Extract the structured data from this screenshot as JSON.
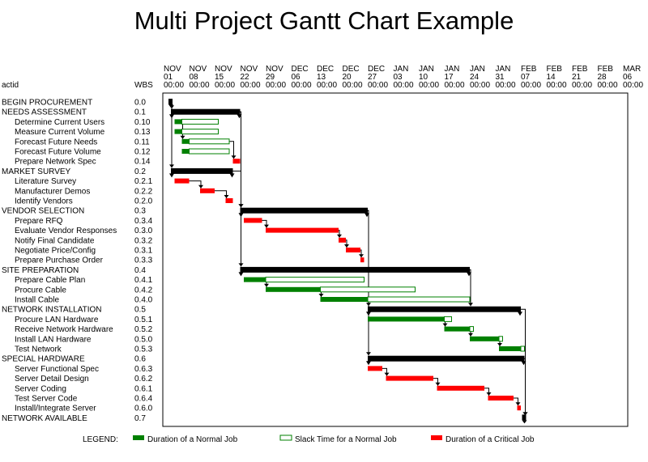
{
  "chart_data": {
    "type": "gantt",
    "title": "Multi Project Gantt Chart Example",
    "columns": {
      "actid": "actid",
      "wbs": "WBS"
    },
    "date_ticks": [
      {
        "mon": "NOV",
        "day": "01",
        "time": "00:00",
        "date": "2003-11-01"
      },
      {
        "mon": "NOV",
        "day": "08",
        "time": "00:00",
        "date": "2003-11-08"
      },
      {
        "mon": "NOV",
        "day": "15",
        "time": "00:00",
        "date": "2003-11-15"
      },
      {
        "mon": "NOV",
        "day": "22",
        "time": "00:00",
        "date": "2003-11-22"
      },
      {
        "mon": "NOV",
        "day": "29",
        "time": "00:00",
        "date": "2003-11-29"
      },
      {
        "mon": "DEC",
        "day": "06",
        "time": "00:00",
        "date": "2003-12-06"
      },
      {
        "mon": "DEC",
        "day": "13",
        "time": "00:00",
        "date": "2003-12-13"
      },
      {
        "mon": "DEC",
        "day": "20",
        "time": "00:00",
        "date": "2003-12-20"
      },
      {
        "mon": "DEC",
        "day": "27",
        "time": "00:00",
        "date": "2003-12-27"
      },
      {
        "mon": "JAN",
        "day": "03",
        "time": "00:00",
        "date": "2004-01-03"
      },
      {
        "mon": "JAN",
        "day": "10",
        "time": "00:00",
        "date": "2004-01-10"
      },
      {
        "mon": "JAN",
        "day": "17",
        "time": "00:00",
        "date": "2004-01-17"
      },
      {
        "mon": "JAN",
        "day": "24",
        "time": "00:00",
        "date": "2004-01-24"
      },
      {
        "mon": "JAN",
        "day": "31",
        "time": "00:00",
        "date": "2004-01-31"
      },
      {
        "mon": "FEB",
        "day": "07",
        "time": "00:00",
        "date": "2004-02-07"
      },
      {
        "mon": "FEB",
        "day": "14",
        "time": "00:00",
        "date": "2004-02-14"
      },
      {
        "mon": "FEB",
        "day": "21",
        "time": "00:00",
        "date": "2004-02-21"
      },
      {
        "mon": "FEB",
        "day": "28",
        "time": "00:00",
        "date": "2004-02-28"
      },
      {
        "mon": "MAR",
        "day": "06",
        "time": "00:00",
        "date": "2004-03-06"
      }
    ],
    "xlim": [
      "2003-11-01",
      "2004-03-06"
    ],
    "tasks": [
      {
        "actid": "BEGIN PROCUREMENT",
        "wbs": "0.0",
        "indent": 0,
        "kind": "milestone",
        "start": "2003-11-03"
      },
      {
        "actid": "NEEDS ASSESSMENT",
        "wbs": "0.1",
        "indent": 0,
        "kind": "summary",
        "start": "2003-11-03",
        "finish": "2003-11-22"
      },
      {
        "actid": "Determine Current Users",
        "wbs": "0.10",
        "indent": 1,
        "kind": "normal",
        "start": "2003-11-04",
        "finish": "2003-11-06",
        "slack_finish": "2003-11-16"
      },
      {
        "actid": "Measure Current Volume",
        "wbs": "0.13",
        "indent": 1,
        "kind": "normal",
        "start": "2003-11-04",
        "finish": "2003-11-06",
        "slack_finish": "2003-11-16"
      },
      {
        "actid": "Forecast Future Needs",
        "wbs": "0.11",
        "indent": 1,
        "kind": "normal",
        "start": "2003-11-06",
        "finish": "2003-11-08",
        "slack_finish": "2003-11-19"
      },
      {
        "actid": "Forecast Future Volume",
        "wbs": "0.12",
        "indent": 1,
        "kind": "normal",
        "start": "2003-11-06",
        "finish": "2003-11-08",
        "slack_finish": "2003-11-19"
      },
      {
        "actid": "Prepare Network Spec",
        "wbs": "0.14",
        "indent": 1,
        "kind": "critical",
        "start": "2003-11-20",
        "finish": "2003-11-22"
      },
      {
        "actid": "MARKET SURVEY",
        "wbs": "0.2",
        "indent": 0,
        "kind": "summary",
        "start": "2003-11-03",
        "finish": "2003-11-20"
      },
      {
        "actid": "Literature Survey",
        "wbs": "0.2.1",
        "indent": 1,
        "kind": "critical",
        "start": "2003-11-04",
        "finish": "2003-11-08"
      },
      {
        "actid": "Manufacturer Demos",
        "wbs": "0.2.2",
        "indent": 1,
        "kind": "critical",
        "start": "2003-11-11",
        "finish": "2003-11-15"
      },
      {
        "actid": "Identify Vendors",
        "wbs": "0.2.0",
        "indent": 1,
        "kind": "critical",
        "start": "2003-11-18",
        "finish": "2003-11-20"
      },
      {
        "actid": "VENDOR SELECTION",
        "wbs": "0.3",
        "indent": 0,
        "kind": "summary",
        "start": "2003-11-22",
        "finish": "2003-12-27"
      },
      {
        "actid": "Prepare RFQ",
        "wbs": "0.3.4",
        "indent": 1,
        "kind": "critical",
        "start": "2003-11-23",
        "finish": "2003-11-28"
      },
      {
        "actid": "Evaluate Vendor Responses",
        "wbs": "0.3.0",
        "indent": 1,
        "kind": "critical",
        "start": "2003-11-29",
        "finish": "2003-12-19"
      },
      {
        "actid": "Notify Final Candidate",
        "wbs": "0.3.2",
        "indent": 1,
        "kind": "critical",
        "start": "2003-12-19",
        "finish": "2003-12-21"
      },
      {
        "actid": "Negotiate Price/Config",
        "wbs": "0.3.1",
        "indent": 1,
        "kind": "critical",
        "start": "2003-12-21",
        "finish": "2003-12-25"
      },
      {
        "actid": "Prepare Purchase Order",
        "wbs": "0.3.3",
        "indent": 1,
        "kind": "critical",
        "start": "2003-12-25",
        "finish": "2003-12-26"
      },
      {
        "actid": "SITE PREPARATION",
        "wbs": "0.4",
        "indent": 0,
        "kind": "summary",
        "start": "2003-11-22",
        "finish": "2004-01-24"
      },
      {
        "actid": "Prepare Cable Plan",
        "wbs": "0.4.1",
        "indent": 1,
        "kind": "normal",
        "start": "2003-11-23",
        "finish": "2003-11-29",
        "slack_finish": "2003-12-26"
      },
      {
        "actid": "Procure Cable",
        "wbs": "0.4.2",
        "indent": 1,
        "kind": "normal",
        "start": "2003-11-29",
        "finish": "2003-12-14",
        "slack_finish": "2004-01-09"
      },
      {
        "actid": "Install Cable",
        "wbs": "0.4.0",
        "indent": 1,
        "kind": "normal",
        "start": "2003-12-14",
        "finish": "2003-12-27",
        "slack_finish": "2004-01-24"
      },
      {
        "actid": "NETWORK INSTALLATION",
        "wbs": "0.5",
        "indent": 0,
        "kind": "summary",
        "start": "2003-12-27",
        "finish": "2004-02-07"
      },
      {
        "actid": "Procure LAN Hardware",
        "wbs": "0.5.1",
        "indent": 1,
        "kind": "normal",
        "start": "2003-12-27",
        "finish": "2004-01-17",
        "slack_finish": "2004-01-19"
      },
      {
        "actid": "Receive Network Hardware",
        "wbs": "0.5.2",
        "indent": 1,
        "kind": "normal",
        "start": "2004-01-17",
        "finish": "2004-01-24",
        "slack_finish": "2004-01-25"
      },
      {
        "actid": "Install LAN Hardware",
        "wbs": "0.5.0",
        "indent": 1,
        "kind": "normal",
        "start": "2004-01-24",
        "finish": "2004-02-01",
        "slack_finish": "2004-02-02"
      },
      {
        "actid": "Test Network",
        "wbs": "0.5.3",
        "indent": 1,
        "kind": "normal",
        "start": "2004-02-01",
        "finish": "2004-02-07",
        "slack_finish": "2004-02-08"
      },
      {
        "actid": "SPECIAL HARDWARE",
        "wbs": "0.6",
        "indent": 0,
        "kind": "summary",
        "start": "2003-12-27",
        "finish": "2004-02-08"
      },
      {
        "actid": "Server Functional Spec",
        "wbs": "0.6.3",
        "indent": 1,
        "kind": "critical",
        "start": "2003-12-27",
        "finish": "2003-12-31"
      },
      {
        "actid": "Server Detail Design",
        "wbs": "0.6.2",
        "indent": 1,
        "kind": "critical",
        "start": "2004-01-01",
        "finish": "2004-01-14"
      },
      {
        "actid": "Server Coding",
        "wbs": "0.6.1",
        "indent": 1,
        "kind": "critical",
        "start": "2004-01-15",
        "finish": "2004-01-28"
      },
      {
        "actid": "Test Server Code",
        "wbs": "0.6.4",
        "indent": 1,
        "kind": "critical",
        "start": "2004-01-29",
        "finish": "2004-02-05"
      },
      {
        "actid": "Install/Integrate Server",
        "wbs": "0.6.0",
        "indent": 1,
        "kind": "critical",
        "start": "2004-02-06",
        "finish": "2004-02-07"
      },
      {
        "actid": "NETWORK AVAILABLE",
        "wbs": "0.7",
        "indent": 0,
        "kind": "milestone",
        "start": "2004-02-08"
      }
    ],
    "links": [
      [
        0,
        1
      ],
      [
        0,
        7
      ],
      [
        1,
        11
      ],
      [
        1,
        17
      ],
      [
        7,
        11
      ],
      [
        11,
        21
      ],
      [
        11,
        26
      ],
      [
        17,
        21
      ],
      [
        21,
        32
      ],
      [
        26,
        32
      ],
      [
        2,
        4
      ],
      [
        4,
        6
      ],
      [
        8,
        9
      ],
      [
        9,
        10
      ],
      [
        12,
        13
      ],
      [
        13,
        14
      ],
      [
        14,
        15
      ],
      [
        15,
        16
      ],
      [
        18,
        19
      ],
      [
        19,
        20
      ],
      [
        22,
        23
      ],
      [
        23,
        24
      ],
      [
        24,
        25
      ],
      [
        27,
        28
      ],
      [
        28,
        29
      ],
      [
        29,
        30
      ],
      [
        30,
        31
      ]
    ],
    "legend": {
      "label": "LEGEND:",
      "items": [
        {
          "label": "Duration of a Normal Job",
          "kind": "normal"
        },
        {
          "label": "Slack Time for a Normal Job",
          "kind": "slack"
        },
        {
          "label": "Duration of a Critical Job",
          "kind": "critical"
        }
      ]
    },
    "colors": {
      "normal": "#008000",
      "critical": "#ff0000",
      "slack_fill": "#ffffff",
      "slack_border": "#008000",
      "summary": "#000000"
    }
  }
}
